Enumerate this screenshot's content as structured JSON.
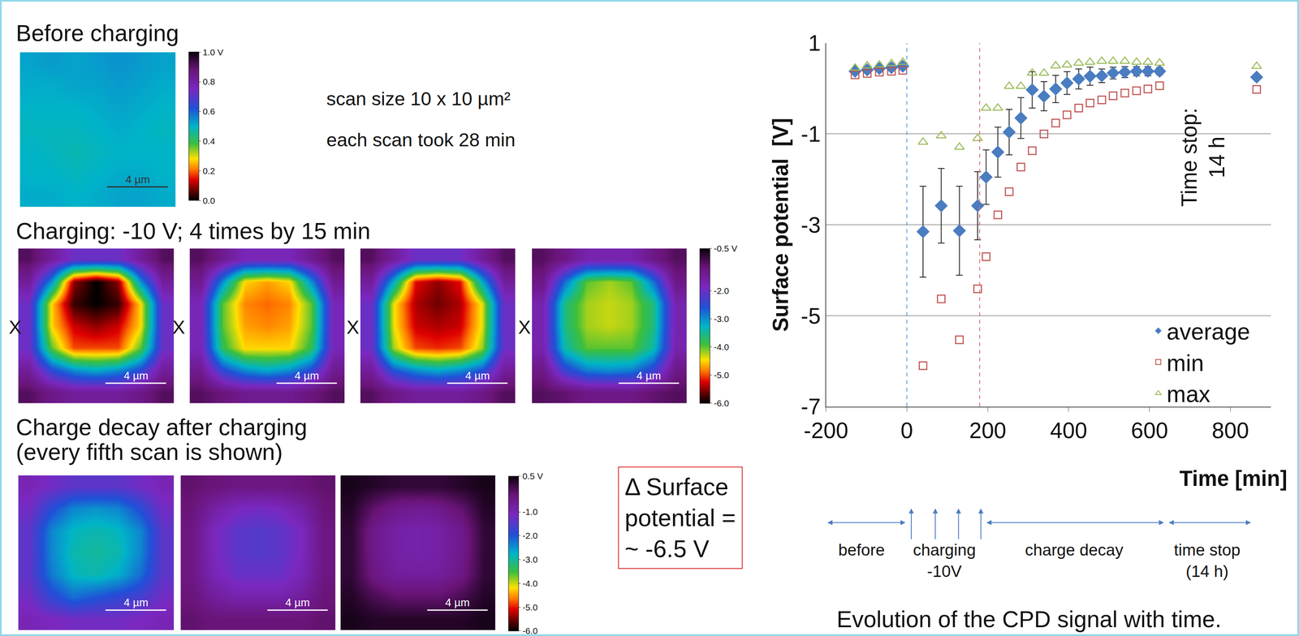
{
  "texts": {
    "scan_size": "scan size 10 x 10 µm²",
    "scan_time": "each scan took 28 min",
    "charging_marks": [
      "X",
      "X",
      "X",
      "X"
    ],
    "scale_bar": "4 µm",
    "delta_box": [
      "Δ Surface",
      "potential =",
      "~ -6.5 V"
    ],
    "phases": [
      [
        "before"
      ],
      [
        "charging",
        "-10V"
      ],
      [
        "charge decay"
      ],
      [
        "time stop",
        "(14 h)"
      ]
    ],
    "caption": "Evolution of the CPD signal with time."
  },
  "scans": {
    "before": {
      "title": [
        "Before charging"
      ],
      "colorbar": {
        "range": [
          0,
          1
        ],
        "ticks": [
          {
            "value": 1,
            "label": "1.0 V"
          },
          0.8,
          0.6,
          0.4,
          0.2,
          {
            "value": 0,
            "label": "0.0"
          }
        ]
      },
      "images": [
        [
          [
            0.52,
            0.53,
            0.52,
            0.53,
            0.54,
            0.53,
            0.52
          ],
          [
            0.51,
            0.51,
            0.52,
            0.52,
            0.53,
            0.52,
            0.51
          ],
          [
            0.5,
            0.5,
            0.5,
            0.51,
            0.52,
            0.51,
            0.5
          ],
          [
            0.49,
            0.49,
            0.49,
            0.5,
            0.51,
            0.5,
            0.49
          ],
          [
            0.5,
            0.49,
            0.48,
            0.49,
            0.5,
            0.5,
            0.5
          ],
          [
            0.5,
            0.5,
            0.49,
            0.5,
            0.51,
            0.51,
            0.5
          ],
          [
            0.51,
            0.51,
            0.5,
            0.51,
            0.52,
            0.52,
            0.51
          ]
        ]
      ]
    },
    "charging": {
      "title": [
        "Charging: -10 V; 4 times by 15 min"
      ],
      "colorbar": {
        "range": [
          -6,
          -0.5
        ],
        "ticks": [
          {
            "value": -0.5,
            "label": "-0.5 V"
          },
          {
            "value": -2,
            "label": "-2.0"
          },
          {
            "value": -3,
            "label": "-3.0"
          },
          {
            "value": -4,
            "label": "-4.0"
          },
          {
            "value": -5,
            "label": "-5.0"
          },
          {
            "value": -6,
            "label": "-6.0"
          }
        ]
      },
      "images": [
        [
          [
            -1.0,
            -1.5,
            -2.0,
            -2.0,
            -2.0,
            -1.5,
            -1.0
          ],
          [
            -1.5,
            -3.0,
            -5.5,
            -6.0,
            -5.5,
            -3.0,
            -1.5
          ],
          [
            -2.0,
            -4.5,
            -5.8,
            -6.0,
            -5.8,
            -4.5,
            -2.0
          ],
          [
            -2.0,
            -4.5,
            -5.3,
            -5.5,
            -5.3,
            -4.5,
            -2.0
          ],
          [
            -2.0,
            -4.0,
            -5.0,
            -5.0,
            -5.0,
            -4.0,
            -2.0
          ],
          [
            -1.5,
            -2.5,
            -3.0,
            -3.2,
            -3.0,
            -2.5,
            -1.5
          ],
          [
            -1.0,
            -1.3,
            -1.5,
            -1.5,
            -1.5,
            -1.3,
            -1.0
          ]
        ],
        [
          [
            -1.0,
            -1.4,
            -1.8,
            -1.8,
            -1.8,
            -1.4,
            -1.0
          ],
          [
            -1.4,
            -3.0,
            -4.5,
            -4.7,
            -4.5,
            -3.0,
            -1.4
          ],
          [
            -1.8,
            -4.0,
            -4.8,
            -4.9,
            -4.8,
            -4.0,
            -1.8
          ],
          [
            -1.8,
            -4.0,
            -4.7,
            -4.8,
            -4.7,
            -4.0,
            -1.8
          ],
          [
            -1.8,
            -3.8,
            -4.5,
            -4.5,
            -4.5,
            -3.8,
            -1.8
          ],
          [
            -1.4,
            -2.5,
            -3.0,
            -3.2,
            -3.0,
            -2.5,
            -1.4
          ],
          [
            -1.0,
            -1.2,
            -1.4,
            -1.4,
            -1.4,
            -1.2,
            -1.0
          ]
        ],
        [
          [
            -1.0,
            -1.5,
            -2.0,
            -2.0,
            -2.0,
            -1.5,
            -1.0
          ],
          [
            -1.5,
            -3.2,
            -5.2,
            -5.5,
            -5.2,
            -3.2,
            -1.5
          ],
          [
            -2.0,
            -4.4,
            -5.4,
            -5.6,
            -5.4,
            -4.4,
            -2.0
          ],
          [
            -2.0,
            -4.4,
            -5.3,
            -5.4,
            -5.3,
            -4.4,
            -2.0
          ],
          [
            -2.0,
            -4.2,
            -5.0,
            -5.1,
            -5.0,
            -4.2,
            -2.0
          ],
          [
            -1.5,
            -2.6,
            -3.0,
            -3.2,
            -3.0,
            -2.6,
            -1.5
          ],
          [
            -1.0,
            -1.3,
            -1.5,
            -1.5,
            -1.5,
            -1.3,
            -1.0
          ]
        ],
        [
          [
            -1.0,
            -1.3,
            -1.7,
            -1.7,
            -1.7,
            -1.3,
            -1.0
          ],
          [
            -1.3,
            -2.8,
            -4.0,
            -4.2,
            -4.0,
            -2.8,
            -1.3
          ],
          [
            -1.7,
            -3.6,
            -4.2,
            -4.3,
            -4.2,
            -3.6,
            -1.7
          ],
          [
            -1.7,
            -3.6,
            -4.2,
            -4.3,
            -4.2,
            -3.6,
            -1.7
          ],
          [
            -1.7,
            -3.4,
            -4.0,
            -4.0,
            -4.0,
            -3.4,
            -1.7
          ],
          [
            -1.3,
            -2.4,
            -2.9,
            -3.0,
            -2.9,
            -2.4,
            -1.3
          ],
          [
            -1.0,
            -1.1,
            -1.3,
            -1.3,
            -1.3,
            -1.1,
            -1.0
          ]
        ]
      ]
    },
    "decay": {
      "title": [
        "Charge decay after charging",
        "(every fifth scan is shown)"
      ],
      "colorbar": {
        "range": [
          -6,
          0.5
        ],
        "ticks": [
          {
            "value": 0.5,
            "label": "0.5 V"
          },
          {
            "value": -1,
            "label": "-1.0"
          },
          {
            "value": -2,
            "label": "-2.0"
          },
          {
            "value": -3,
            "label": "-3.0"
          },
          {
            "value": -4,
            "label": "-4.0"
          },
          {
            "value": -5,
            "label": "-5.0"
          },
          {
            "value": -6,
            "label": "-6.0"
          }
        ]
      },
      "images": [
        [
          [
            -1.0,
            -1.2,
            -1.4,
            -1.4,
            -1.4,
            -1.2,
            -1.0
          ],
          [
            -1.2,
            -1.9,
            -2.4,
            -2.5,
            -2.4,
            -1.9,
            -1.2
          ],
          [
            -1.4,
            -2.4,
            -2.8,
            -2.9,
            -2.8,
            -2.4,
            -1.4
          ],
          [
            -1.4,
            -2.4,
            -2.9,
            -3.0,
            -2.9,
            -2.4,
            -1.4
          ],
          [
            -1.4,
            -2.3,
            -2.8,
            -2.9,
            -2.7,
            -2.2,
            -1.4
          ],
          [
            -1.2,
            -1.8,
            -2.2,
            -2.0,
            -1.8,
            -1.6,
            -1.2
          ],
          [
            -1.0,
            -1.1,
            -1.2,
            -1.2,
            -1.2,
            -1.1,
            -1.0
          ]
        ],
        [
          [
            -0.2,
            -0.3,
            -0.4,
            -0.4,
            -0.4,
            -0.3,
            -0.2
          ],
          [
            -0.3,
            -0.8,
            -1.1,
            -1.2,
            -1.1,
            -0.8,
            -0.3
          ],
          [
            -0.4,
            -1.1,
            -1.4,
            -1.5,
            -1.4,
            -1.1,
            -0.4
          ],
          [
            -0.4,
            -1.1,
            -1.4,
            -1.5,
            -1.4,
            -1.1,
            -0.4
          ],
          [
            -0.4,
            -1.0,
            -1.3,
            -1.3,
            -1.3,
            -1.0,
            -0.4
          ],
          [
            -0.3,
            -0.7,
            -0.9,
            -0.9,
            -0.9,
            -0.7,
            -0.3
          ],
          [
            -0.2,
            -0.3,
            -0.3,
            -0.3,
            -0.3,
            -0.3,
            -0.2
          ]
        ],
        [
          [
            0.4,
            0.3,
            0.2,
            0.2,
            0.2,
            0.3,
            0.4
          ],
          [
            0.3,
            -0.2,
            -0.5,
            -0.6,
            -0.5,
            -0.2,
            0.3
          ],
          [
            0.2,
            -0.5,
            -0.8,
            -0.9,
            -0.8,
            -0.5,
            0.2
          ],
          [
            0.2,
            -0.5,
            -0.8,
            -0.9,
            -0.8,
            -0.5,
            0.2
          ],
          [
            0.2,
            -0.4,
            -0.7,
            -0.7,
            -0.7,
            -0.4,
            0.2
          ],
          [
            0.3,
            0.0,
            -0.2,
            -0.2,
            -0.2,
            0.0,
            0.3
          ],
          [
            0.4,
            0.3,
            0.3,
            0.3,
            0.3,
            0.3,
            0.4
          ]
        ]
      ]
    }
  },
  "chart_data": {
    "type": "scatter",
    "x_label": "Time [min]",
    "y_label": "Surface potential  [V]",
    "xlim": [
      -200,
      900
    ],
    "xticks": [
      -200,
      0,
      200,
      400,
      600,
      800
    ],
    "ylim": [
      -7,
      1
    ],
    "yticks": [
      -7,
      -5,
      -3,
      -1,
      1
    ],
    "grid": true,
    "legend": "lower right",
    "annotation": [
      "Time stop:",
      "14 h"
    ],
    "vlines": [
      {
        "x": 0,
        "color": "#5b9bd5",
        "line_style": "dash"
      },
      {
        "x": 180,
        "color": "#e06666",
        "line_style": "dash"
      }
    ],
    "x": [
      -128,
      -98,
      -68,
      -38,
      -10,
      40,
      85,
      130,
      175,
      196,
      225,
      253,
      282,
      310,
      339,
      368,
      396,
      425,
      453,
      482,
      510,
      539,
      568,
      596,
      625,
      865
    ],
    "series": [
      {
        "name": "average",
        "color": "#4a7cc0",
        "marker": "diamond",
        "values": [
          0.38,
          0.41,
          0.44,
          0.46,
          0.49,
          -3.15,
          -2.58,
          -3.13,
          -2.58,
          -1.95,
          -1.4,
          -0.96,
          -0.65,
          -0.03,
          -0.17,
          -0.01,
          0.12,
          0.21,
          0.27,
          0.28,
          0.34,
          0.36,
          0.38,
          0.38,
          0.38,
          0.25
        ],
        "error": [
          0.05,
          0.05,
          0.05,
          0.05,
          0.05,
          1.0,
          0.82,
          0.98,
          0.75,
          0.6,
          0.55,
          0.5,
          0.45,
          0.4,
          0.32,
          0.3,
          0.25,
          0.22,
          0.2,
          0.15,
          0.13,
          0.12,
          0.1,
          0.1,
          0.08,
          0.05
        ]
      },
      {
        "name": "min",
        "color": "#c0504d",
        "marker": "square-open",
        "values": [
          0.3,
          0.33,
          0.36,
          0.38,
          0.4,
          -6.1,
          -4.63,
          -5.53,
          -4.41,
          -3.7,
          -2.78,
          -2.27,
          -1.73,
          -1.37,
          -1.0,
          -0.76,
          -0.58,
          -0.43,
          -0.32,
          -0.25,
          -0.16,
          -0.1,
          -0.05,
          -0.01,
          0.06,
          -0.02
        ]
      },
      {
        "name": "max",
        "color": "#9bbb59",
        "marker": "triangle-up-open",
        "values": [
          0.45,
          0.5,
          0.52,
          0.55,
          0.58,
          -1.18,
          -1.04,
          -1.29,
          -1.1,
          -0.43,
          -0.43,
          0.05,
          0.05,
          0.34,
          0.34,
          0.5,
          0.52,
          0.56,
          0.58,
          0.6,
          0.6,
          0.6,
          0.58,
          0.58,
          0.56,
          0.49
        ]
      }
    ]
  }
}
